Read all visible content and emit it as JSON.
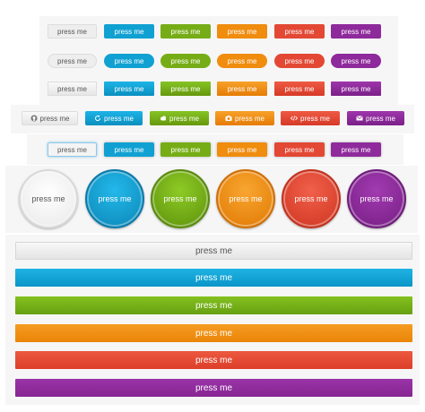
{
  "label": "press me",
  "colors": {
    "default": "#eeeeee",
    "blue": "#10a1d2",
    "green": "#76ad16",
    "orange": "#f08c0e",
    "red": "#e34834",
    "purple": "#8e2a9b"
  },
  "icon_row": [
    {
      "icon": "github-icon",
      "label": "press me"
    },
    {
      "icon": "refresh-icon",
      "label": "press me"
    },
    {
      "icon": "cloud-icon",
      "label": "press me"
    },
    {
      "icon": "camera-icon",
      "label": "press me"
    },
    {
      "icon": "code-icon",
      "label": "press me"
    },
    {
      "icon": "envelope-icon",
      "label": "press me"
    }
  ]
}
